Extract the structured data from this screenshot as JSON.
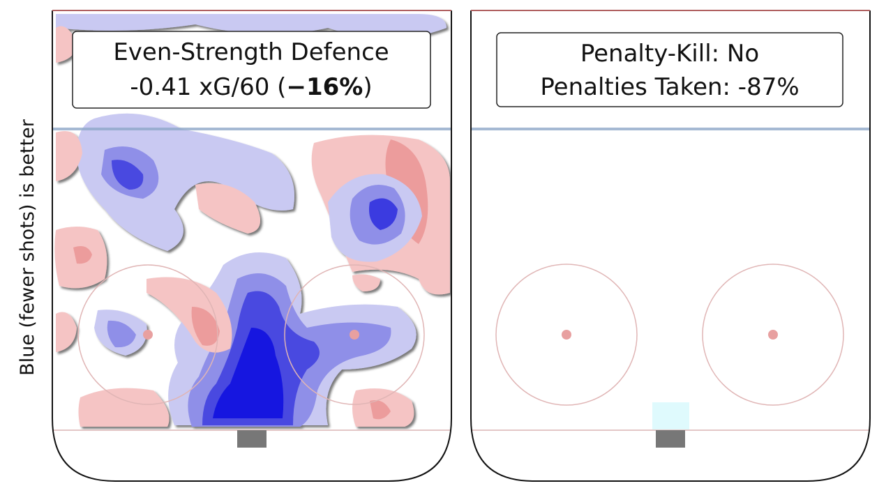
{
  "y_label": "Blue (fewer shots) is better",
  "panels": [
    {
      "title_lines": [
        "Even-Strength Defence"
      ],
      "subtitle_parts": [
        "-0.41 xG/60 (",
        "−16%",
        ")"
      ]
    },
    {
      "title_lines": [
        "Penalty-Kill: No",
        "Penalties Taken: -87%"
      ]
    }
  ]
}
